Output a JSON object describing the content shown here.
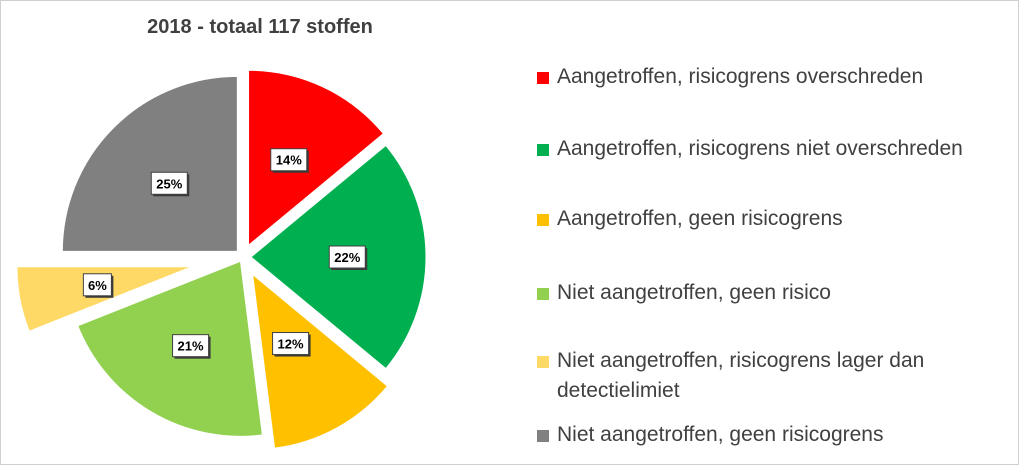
{
  "chart_data": {
    "type": "pie",
    "title": "2018 - totaal 117 stoffen",
    "slices": [
      {
        "label": "Aangetroffen, risicogrens overschreden",
        "value": 14,
        "value_label": "14%",
        "color": "#ff0000"
      },
      {
        "label": "Aangetroffen, risicogrens niet overschreden",
        "value": 22,
        "value_label": "22%",
        "color": "#00b050"
      },
      {
        "label": "Aangetroffen, geen risicogrens",
        "value": 12,
        "value_label": "12%",
        "color": "#ffc000"
      },
      {
        "label": "Niet aangetroffen, geen risico",
        "value": 21,
        "value_label": "21%",
        "color": "#92d050"
      },
      {
        "label": "Niet aangetroffen, risicogrens lager dan detectielimiet",
        "label_lines": [
          "Niet aangetroffen, risicogrens lager dan",
          "detectielimiet"
        ],
        "value": 6,
        "value_label": "6%",
        "color": "#ffd966"
      },
      {
        "label": "Niet aangetroffen, geen risicogrens",
        "value": 25,
        "value_label": "25%",
        "color": "#808080"
      }
    ],
    "legend_position": "right"
  }
}
